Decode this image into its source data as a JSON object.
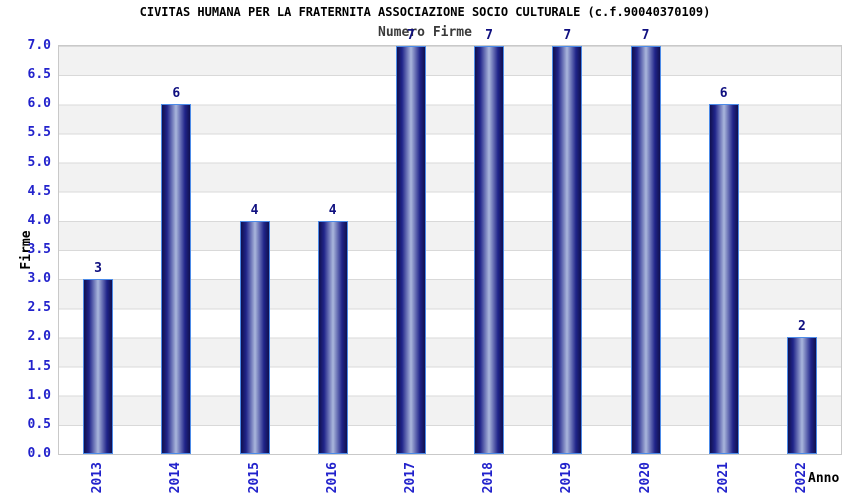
{
  "chart_data": {
    "type": "bar",
    "title": "CIVITAS HUMANA PER LA FRATERNITA ASSOCIAZIONE SOCIO CULTURALE (c.f.90040370109)",
    "subtitle": "Numero Firme",
    "xlabel": "Anno",
    "ylabel": "Firme",
    "categories": [
      "2013",
      "2014",
      "2015",
      "2016",
      "2017",
      "2018",
      "2019",
      "2020",
      "2021",
      "2022"
    ],
    "values": [
      3,
      6,
      4,
      4,
      7,
      7,
      7,
      7,
      6,
      2
    ],
    "ylim": [
      0,
      7
    ],
    "ytick_step": 0.5,
    "yticks": [
      "7.0",
      "6.5",
      "6.0",
      "5.5",
      "5.0",
      "4.5",
      "4.0",
      "3.5",
      "3.0",
      "2.5",
      "2.0",
      "1.5",
      "1.0",
      "0.5",
      "0.0"
    ],
    "grid": "horizontal-bands-alternating",
    "legend": "none",
    "bar_value_labels": [
      "3",
      "6",
      "4",
      "4",
      "7",
      "7",
      "7",
      "7",
      "6",
      "2"
    ],
    "style": {
      "tick_label_color": "#2222cc",
      "value_label_color": "#101080",
      "title_color": "#000000",
      "subtitle_color": "#3a3a3a",
      "band_gray": "#f2f2f2",
      "band_white": "#ffffff",
      "grid_line_color": "#d9d9d9",
      "plot_border_color": "#c9c9c9",
      "bar_border": "#4c8be8",
      "bar_dark": "#10104f",
      "bar_mid": "#20248a",
      "bar_light": "#aab6dc"
    }
  }
}
